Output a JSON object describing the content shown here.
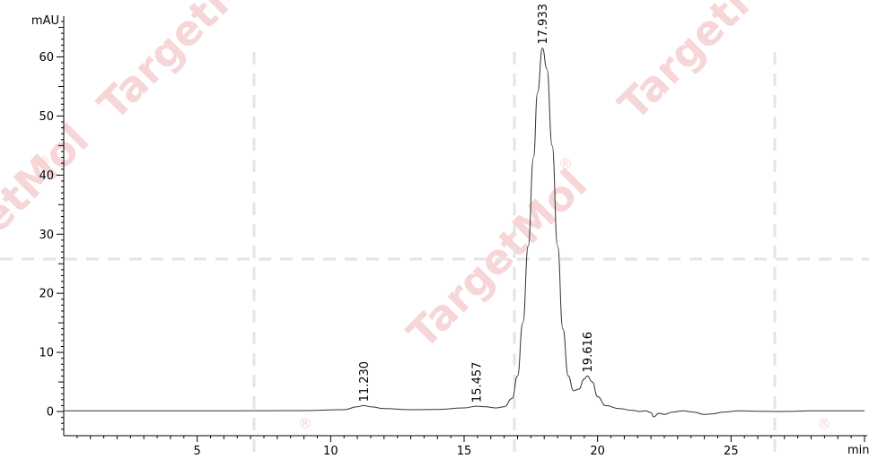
{
  "chart_data": {
    "type": "line",
    "y_unit": "mAU",
    "x_unit": "min",
    "xlim": [
      0,
      30
    ],
    "ylim": [
      -4,
      67
    ],
    "x_ticks": [
      5,
      10,
      15,
      20,
      25
    ],
    "y_ticks": [
      0,
      10,
      20,
      30,
      40,
      50,
      60
    ],
    "grid": false,
    "legend": "none",
    "trace_color": "#333333",
    "watermark": "TargetMol",
    "peaks": [
      {
        "label": "11.230",
        "x": 11.23,
        "y": 1.0
      },
      {
        "label": "15.457",
        "x": 15.457,
        "y": 0.9
      },
      {
        "label": "17.933",
        "x": 17.933,
        "y": 61.5
      },
      {
        "label": "19.616",
        "x": 19.616,
        "y": 6.0
      }
    ],
    "series": [
      {
        "points": [
          [
            0,
            0.1
          ],
          [
            3,
            0.1
          ],
          [
            6,
            0.1
          ],
          [
            9,
            0.15
          ],
          [
            10.5,
            0.3
          ],
          [
            11.0,
            0.8
          ],
          [
            11.23,
            1.0
          ],
          [
            11.5,
            0.8
          ],
          [
            12.0,
            0.5
          ],
          [
            13,
            0.3
          ],
          [
            14,
            0.35
          ],
          [
            15.0,
            0.6
          ],
          [
            15.457,
            0.9
          ],
          [
            15.8,
            0.8
          ],
          [
            16.2,
            0.6
          ],
          [
            16.5,
            0.8
          ],
          [
            16.8,
            2.2
          ],
          [
            17.0,
            6
          ],
          [
            17.2,
            15
          ],
          [
            17.4,
            28
          ],
          [
            17.6,
            43
          ],
          [
            17.75,
            54
          ],
          [
            17.933,
            61.5
          ],
          [
            18.1,
            58
          ],
          [
            18.3,
            45
          ],
          [
            18.5,
            28
          ],
          [
            18.7,
            14
          ],
          [
            18.9,
            6
          ],
          [
            19.1,
            3.5
          ],
          [
            19.3,
            3.8
          ],
          [
            19.5,
            5.5
          ],
          [
            19.616,
            6.0
          ],
          [
            19.8,
            5.0
          ],
          [
            20.0,
            2.5
          ],
          [
            20.3,
            1.0
          ],
          [
            20.8,
            0.5
          ],
          [
            21.3,
            0.2
          ],
          [
            21.6,
            0.0
          ],
          [
            21.8,
            0.1
          ],
          [
            22.0,
            -0.2
          ],
          [
            22.1,
            -0.9
          ],
          [
            22.3,
            -0.3
          ],
          [
            22.5,
            -0.5
          ],
          [
            22.8,
            -0.1
          ],
          [
            23.2,
            0.1
          ],
          [
            23.6,
            -0.1
          ],
          [
            24.0,
            -0.5
          ],
          [
            24.3,
            -0.4
          ],
          [
            24.7,
            -0.1
          ],
          [
            25.3,
            0.1
          ],
          [
            26,
            0.05
          ],
          [
            27,
            0.0
          ],
          [
            28,
            0.1
          ],
          [
            30,
            0.1
          ]
        ]
      }
    ]
  }
}
